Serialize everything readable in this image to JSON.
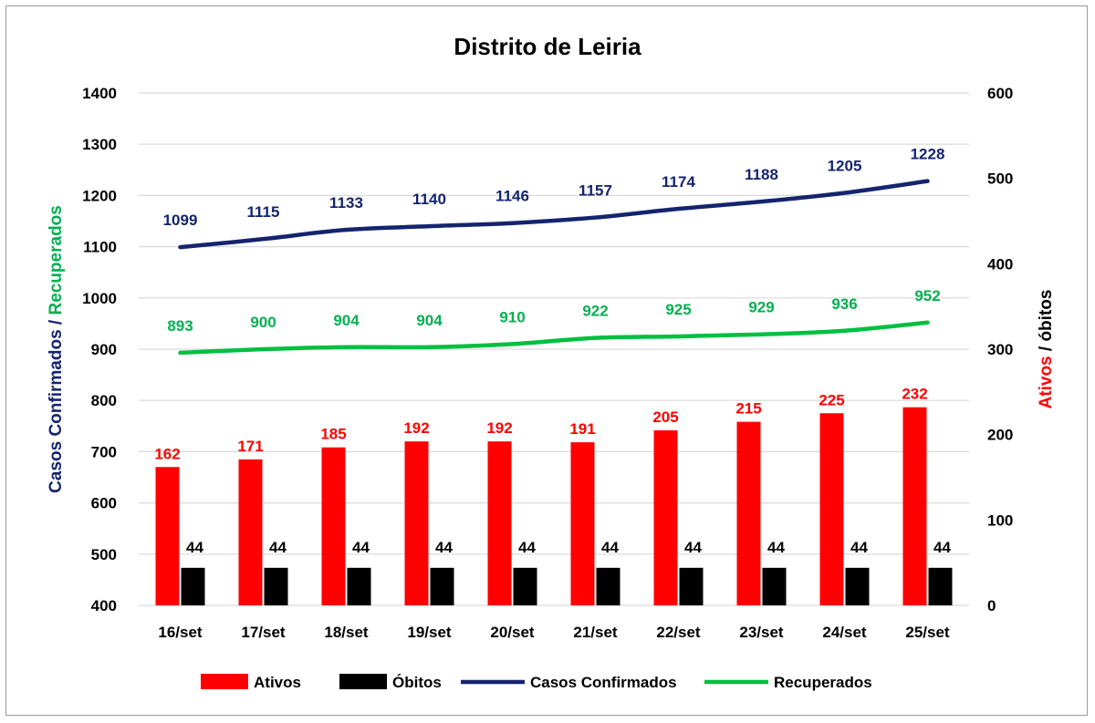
{
  "chart_data": {
    "type": "bar",
    "title": "Distrito de Leiria",
    "categories": [
      "16/set",
      "17/set",
      "18/set",
      "19/set",
      "20/set",
      "21/set",
      "22/set",
      "23/set",
      "24/set",
      "25/set"
    ],
    "y_left": {
      "label_part1": "Casos Confirmados",
      "label_sep": " / ",
      "label_part2": "Recuperados",
      "range": [
        400,
        1400
      ],
      "ticks": [
        "400",
        "500",
        "600",
        "700",
        "800",
        "900",
        "1000",
        "1100",
        "1200",
        "1300",
        "1400"
      ]
    },
    "y_right": {
      "label_part1": "Ativos",
      "label_sep": " / ",
      "label_part2": "óbitos",
      "range": [
        0,
        600
      ],
      "ticks": [
        "0",
        "100",
        "200",
        "300",
        "400",
        "500",
        "600"
      ]
    },
    "grid": true,
    "legend_position": "bottom",
    "series": [
      {
        "name": "Ativos",
        "kind": "bar",
        "axis": "right",
        "color": "#ff0000",
        "label_color": "#ff0000",
        "values": [
          162,
          171,
          185,
          192,
          192,
          191,
          205,
          215,
          225,
          232
        ]
      },
      {
        "name": "Óbitos",
        "kind": "bar",
        "axis": "right",
        "color": "#000000",
        "label_color": "#000000",
        "values": [
          44,
          44,
          44,
          44,
          44,
          44,
          44,
          44,
          44,
          44
        ]
      },
      {
        "name": "Casos Confirmados",
        "kind": "line",
        "axis": "left",
        "color": "#14246e",
        "label_color": "#14246e",
        "values": [
          1099,
          1115,
          1133,
          1140,
          1146,
          1157,
          1174,
          1188,
          1205,
          1228
        ]
      },
      {
        "name": "Recuperados",
        "kind": "line",
        "axis": "left",
        "color": "#00c040",
        "label_color": "#00b050",
        "values": [
          893,
          900,
          904,
          904,
          910,
          922,
          925,
          929,
          936,
          952
        ]
      }
    ]
  }
}
